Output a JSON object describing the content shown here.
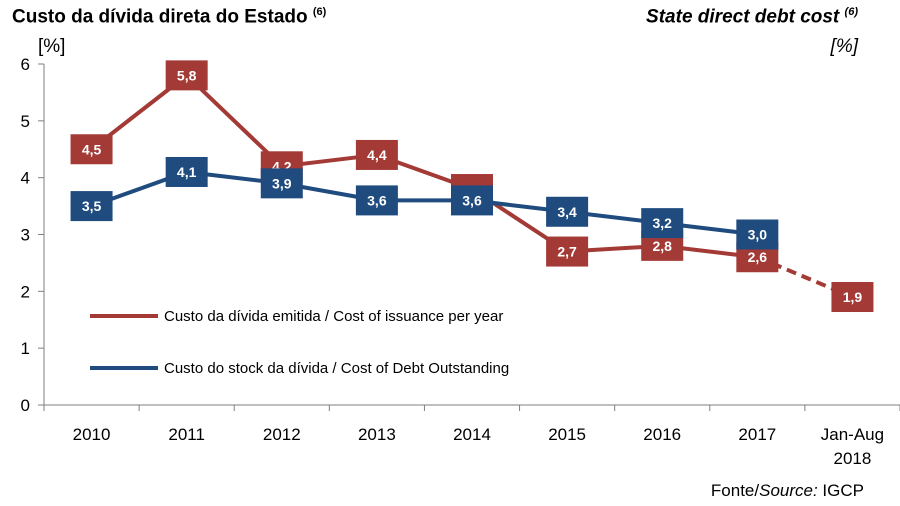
{
  "title_pt": "Custo da dívida direta do Estado",
  "title_pt_note": "(6)",
  "title_en": "State direct debt cost",
  "title_en_note": "(6)",
  "unit_left": "[%]",
  "unit_right": "[%]",
  "source_prefix": "Fonte/",
  "source_italic": "Source:",
  "source_name": " IGCP",
  "colors": {
    "issuance": "#A33A36",
    "outstanding": "#1F4B7F"
  },
  "chart_data": {
    "type": "line",
    "categories": [
      "2010",
      "2011",
      "2012",
      "2013",
      "2014",
      "2015",
      "2016",
      "2017",
      "Jan-Aug 2018"
    ],
    "ylim": [
      0,
      6
    ],
    "yticks": [
      "0",
      "1",
      "2",
      "3",
      "4",
      "5",
      "6"
    ],
    "series": [
      {
        "name": "Custo da dívida emitida / Cost of issuance per year",
        "values": [
          4.5,
          5.8,
          4.2,
          4.4,
          3.8,
          2.7,
          2.8,
          2.6,
          1.9
        ],
        "labels": [
          "4,5",
          "5,8",
          "4,2",
          "4,4",
          "",
          "2,7",
          "2,8",
          "2,6",
          "1,9"
        ],
        "dashed_last_segment": true
      },
      {
        "name": "Custo do stock da dívida / Cost of Debt Outstanding",
        "values": [
          3.5,
          4.1,
          3.9,
          3.6,
          3.6,
          3.4,
          3.2,
          3.0,
          null
        ],
        "labels": [
          "3,5",
          "4,1",
          "3,9",
          "3,6",
          "3,6",
          "3,4",
          "3,2",
          "3,0",
          ""
        ]
      }
    ],
    "legend_position": "bottom-left"
  }
}
